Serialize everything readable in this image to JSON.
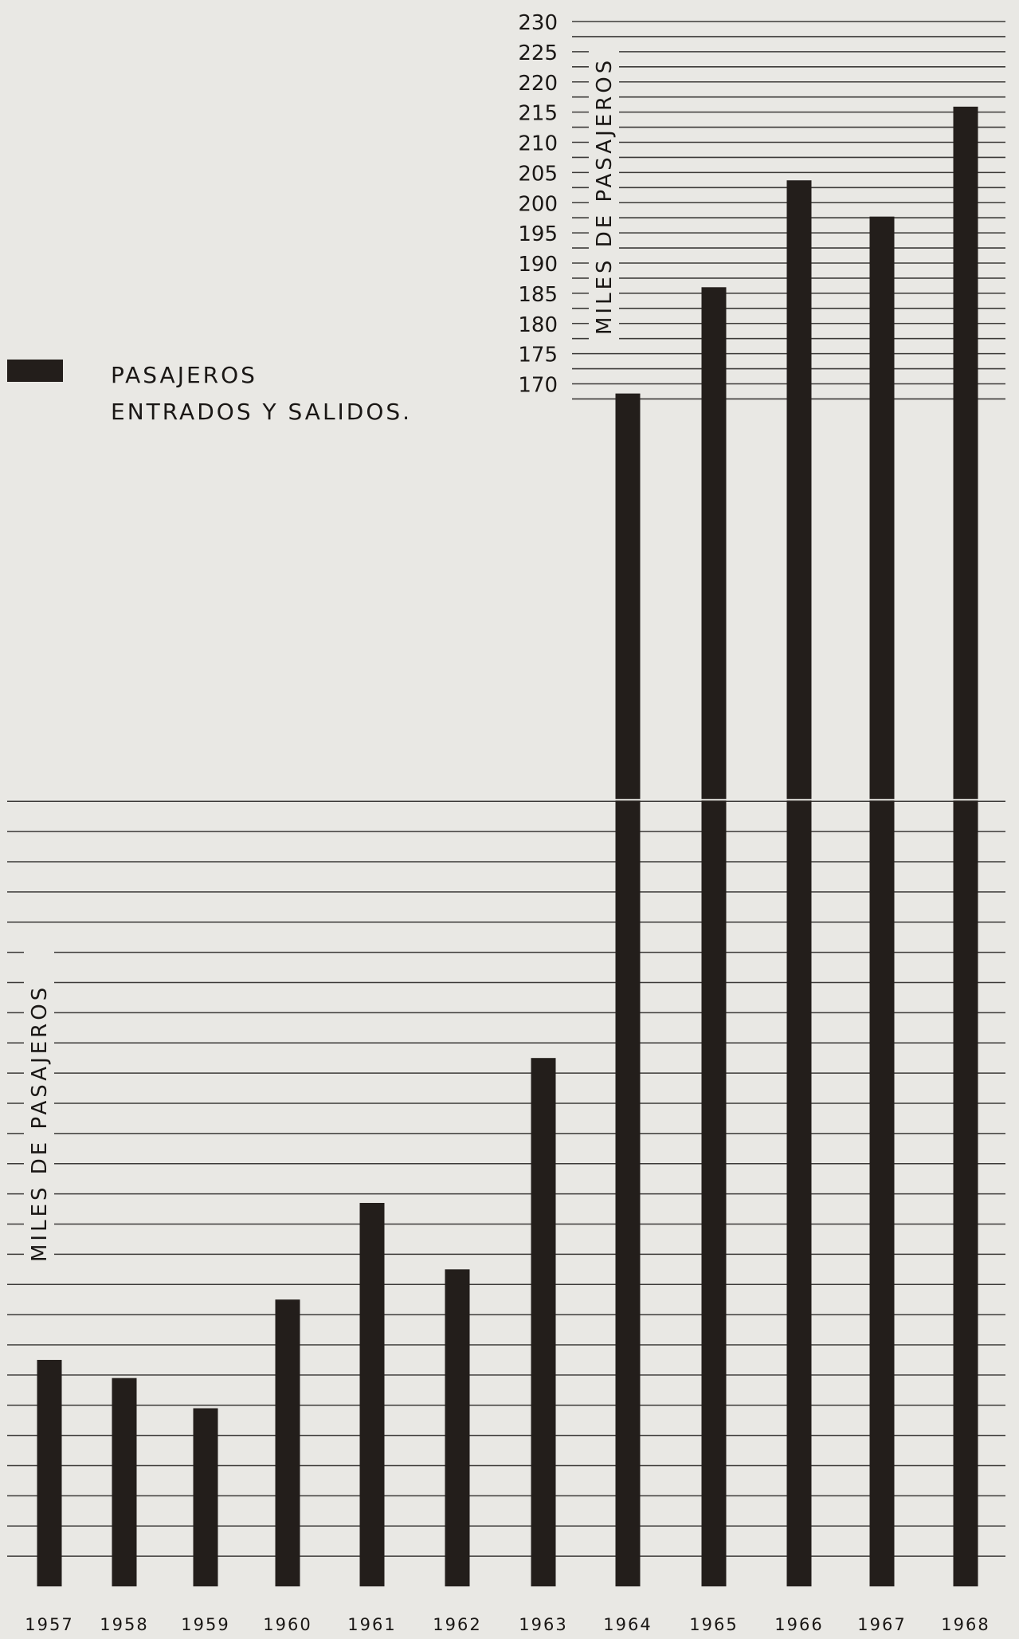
{
  "chart_data": {
    "type": "bar",
    "legend": {
      "position": "upper-left",
      "lines": [
        "PASAJEROS",
        "ENTRADOS Y SALIDOS."
      ]
    },
    "ylabel_upper": "MILES DE PASAJEROS",
    "ylabel_lower": "MILES DE PASAJEROS",
    "grid": true,
    "upper_panel": {
      "ylim": [
        166.5,
        230
      ],
      "yticks": [
        170,
        175,
        180,
        185,
        190,
        195,
        200,
        205,
        210,
        215,
        220,
        225,
        230
      ]
    },
    "lower_panel": {
      "ylim": [
        0,
        130
      ],
      "yticks_labeled": false
    },
    "categories": [
      "1957",
      "1958",
      "1959",
      "1960",
      "1961",
      "1962",
      "1963",
      "1964",
      "1965",
      "1966",
      "1967",
      "1968"
    ],
    "values": [
      37.5,
      34.5,
      29.5,
      47.5,
      63.5,
      52.5,
      87.5,
      168.4,
      186,
      203.7,
      197.7,
      215.9
    ],
    "colors": {
      "bar": "#231e1b",
      "grid": "#3c3a38",
      "background": "#e9e8e4",
      "text": "#1a1715"
    }
  }
}
